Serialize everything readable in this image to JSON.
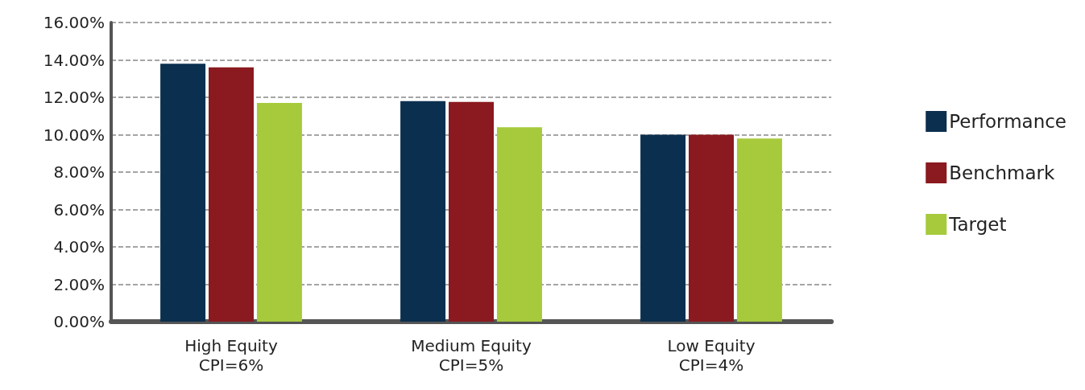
{
  "chart_data": {
    "type": "bar",
    "categories": [
      "High Equity\nCPI=6%",
      "Medium Equity\nCPI=5%",
      "Low Equity\nCPI=4%"
    ],
    "series": [
      {
        "name": "Performance",
        "color": "#0b2f4e",
        "values": [
          13.8,
          11.8,
          10.0
        ]
      },
      {
        "name": "Benchmark",
        "color": "#8a1a1f",
        "values": [
          13.6,
          11.75,
          10.0
        ]
      },
      {
        "name": "Target",
        "color": "#a6ca3c",
        "values": [
          11.7,
          10.4,
          9.8
        ]
      }
    ],
    "ylim": [
      0,
      16
    ],
    "yticks": [
      {
        "value": 0,
        "label": "0.00%"
      },
      {
        "value": 2,
        "label": "2.00%"
      },
      {
        "value": 4,
        "label": "4.00%"
      },
      {
        "value": 6,
        "label": "6.00%"
      },
      {
        "value": 8,
        "label": "8.00%"
      },
      {
        "value": 10,
        "label": "10.00%"
      },
      {
        "value": 12,
        "label": "12.00%"
      },
      {
        "value": 14,
        "label": "14.00%"
      },
      {
        "value": 16,
        "label": "16.00%"
      }
    ],
    "grid": "y",
    "legend": "right"
  }
}
